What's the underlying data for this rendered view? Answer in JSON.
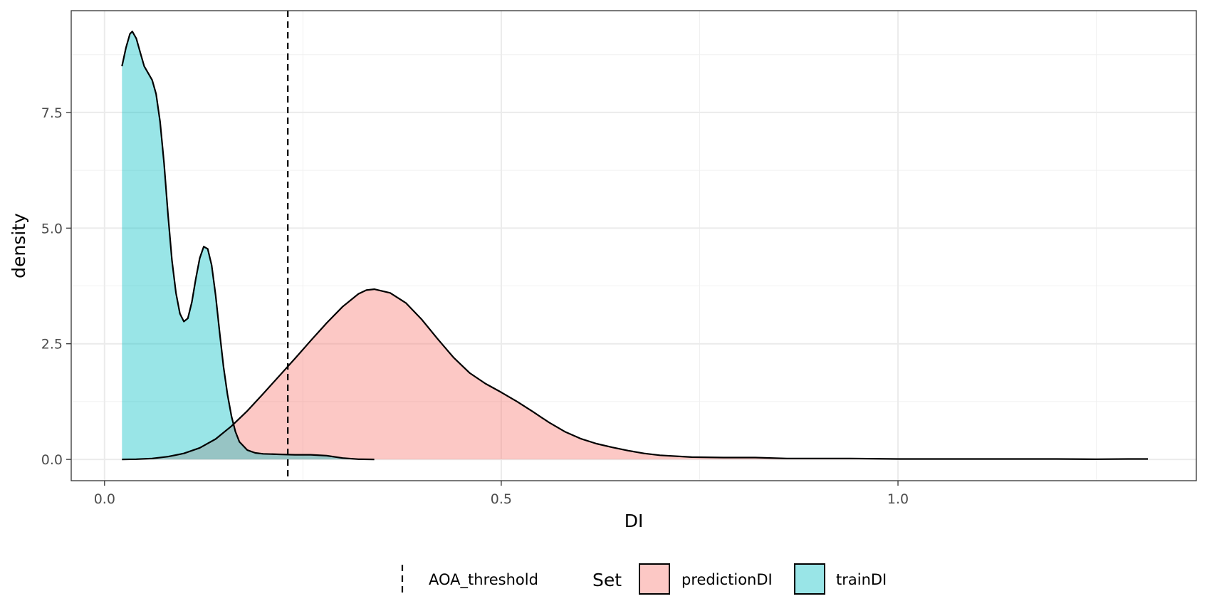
{
  "chart_data": {
    "type": "area",
    "xlabel": "DI",
    "ylabel": "density",
    "xlim": [
      -0.042,
      1.376
    ],
    "ylim": [
      -0.46,
      9.7
    ],
    "x_ticks": [
      0.0,
      0.5,
      1.0
    ],
    "x_tick_labels": [
      "0.0",
      "0.5",
      "1.0"
    ],
    "y_ticks": [
      0.0,
      2.5,
      5.0,
      7.5
    ],
    "y_tick_labels": [
      "0.0",
      "2.5",
      "5.0",
      "7.5"
    ],
    "grid": true,
    "legend_position": "bottom",
    "legend_title": "Set",
    "threshold": {
      "name": "AOA_threshold",
      "x": 0.231,
      "style": "dashed"
    },
    "series": [
      {
        "name": "predictionDI",
        "color": "#F8766D",
        "points": [
          [
            0.022,
            0.0
          ],
          [
            0.04,
            0.005
          ],
          [
            0.06,
            0.02
          ],
          [
            0.08,
            0.06
          ],
          [
            0.1,
            0.13
          ],
          [
            0.12,
            0.25
          ],
          [
            0.14,
            0.44
          ],
          [
            0.16,
            0.72
          ],
          [
            0.18,
            1.05
          ],
          [
            0.2,
            1.42
          ],
          [
            0.22,
            1.8
          ],
          [
            0.24,
            2.18
          ],
          [
            0.26,
            2.57
          ],
          [
            0.28,
            2.95
          ],
          [
            0.3,
            3.3
          ],
          [
            0.32,
            3.58
          ],
          [
            0.33,
            3.66
          ],
          [
            0.34,
            3.68
          ],
          [
            0.36,
            3.6
          ],
          [
            0.38,
            3.38
          ],
          [
            0.4,
            3.02
          ],
          [
            0.42,
            2.6
          ],
          [
            0.44,
            2.2
          ],
          [
            0.46,
            1.87
          ],
          [
            0.48,
            1.64
          ],
          [
            0.5,
            1.45
          ],
          [
            0.52,
            1.25
          ],
          [
            0.54,
            1.03
          ],
          [
            0.56,
            0.8
          ],
          [
            0.58,
            0.6
          ],
          [
            0.6,
            0.45
          ],
          [
            0.62,
            0.34
          ],
          [
            0.64,
            0.26
          ],
          [
            0.66,
            0.19
          ],
          [
            0.68,
            0.13
          ],
          [
            0.7,
            0.09
          ],
          [
            0.74,
            0.05
          ],
          [
            0.78,
            0.04
          ],
          [
            0.82,
            0.04
          ],
          [
            0.86,
            0.02
          ],
          [
            0.9,
            0.02
          ],
          [
            0.94,
            0.02
          ],
          [
            1.0,
            0.01
          ],
          [
            1.05,
            0.01
          ],
          [
            1.1,
            0.01
          ],
          [
            1.15,
            0.01
          ],
          [
            1.2,
            0.01
          ],
          [
            1.25,
            0.005
          ],
          [
            1.29,
            0.01
          ],
          [
            1.315,
            0.01
          ]
        ]
      },
      {
        "name": "trainDI",
        "color": "#00BFC4",
        "points": [
          [
            0.022,
            8.5
          ],
          [
            0.027,
            8.9
          ],
          [
            0.032,
            9.2
          ],
          [
            0.035,
            9.25
          ],
          [
            0.04,
            9.1
          ],
          [
            0.045,
            8.8
          ],
          [
            0.05,
            8.5
          ],
          [
            0.055,
            8.35
          ],
          [
            0.06,
            8.2
          ],
          [
            0.065,
            7.9
          ],
          [
            0.07,
            7.3
          ],
          [
            0.075,
            6.4
          ],
          [
            0.08,
            5.3
          ],
          [
            0.085,
            4.3
          ],
          [
            0.09,
            3.6
          ],
          [
            0.095,
            3.15
          ],
          [
            0.1,
            2.98
          ],
          [
            0.105,
            3.05
          ],
          [
            0.11,
            3.4
          ],
          [
            0.115,
            3.9
          ],
          [
            0.12,
            4.35
          ],
          [
            0.125,
            4.6
          ],
          [
            0.13,
            4.55
          ],
          [
            0.135,
            4.2
          ],
          [
            0.14,
            3.55
          ],
          [
            0.145,
            2.75
          ],
          [
            0.15,
            2.0
          ],
          [
            0.155,
            1.4
          ],
          [
            0.16,
            0.93
          ],
          [
            0.165,
            0.6
          ],
          [
            0.17,
            0.38
          ],
          [
            0.18,
            0.2
          ],
          [
            0.19,
            0.14
          ],
          [
            0.2,
            0.12
          ],
          [
            0.22,
            0.11
          ],
          [
            0.24,
            0.1
          ],
          [
            0.26,
            0.1
          ],
          [
            0.28,
            0.08
          ],
          [
            0.3,
            0.03
          ],
          [
            0.32,
            0.005
          ],
          [
            0.34,
            0.0
          ]
        ]
      }
    ]
  }
}
